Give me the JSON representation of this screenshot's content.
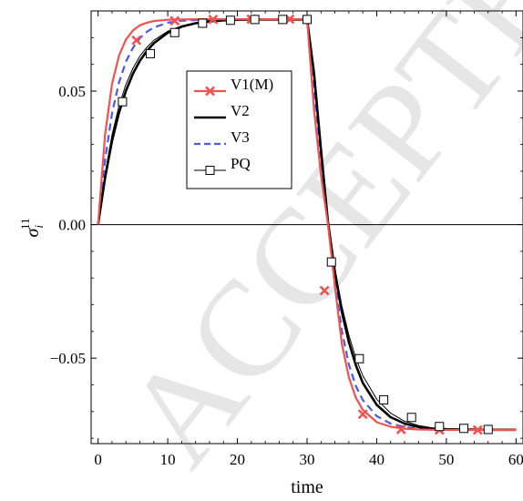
{
  "watermark": "ACCEPTED",
  "chart_data": {
    "type": "line",
    "xlabel": "time",
    "ylabel_base": "σ",
    "ylabel_sub": "i",
    "ylabel_sup": "11",
    "xlim": [
      -1,
      61
    ],
    "ylim": [
      -0.082,
      0.08
    ],
    "xticks": [
      0,
      10,
      20,
      30,
      40,
      50,
      60
    ],
    "xtick_labels": [
      "0",
      "10",
      "20",
      "30",
      "40",
      "50",
      "60"
    ],
    "yticks": [
      -0.05,
      0.0,
      0.05
    ],
    "ytick_labels": [
      "−0.05",
      "0.00",
      "0.05"
    ],
    "legend_position": "upper-center",
    "series": [
      {
        "name": "V1(M)",
        "color": "#f05252",
        "dash": "solid",
        "marker": "x-mark",
        "x": [
          0,
          1,
          2,
          3,
          4,
          5,
          6,
          7,
          8,
          10,
          12,
          14,
          16,
          18,
          20,
          22,
          24,
          26,
          28,
          30,
          31,
          32,
          33,
          34,
          35,
          36,
          37,
          38,
          40,
          42,
          44,
          46,
          48,
          50,
          55,
          60
        ],
        "y": [
          0.0,
          0.0337,
          0.0526,
          0.0633,
          0.0693,
          0.0727,
          0.0746,
          0.0756,
          0.0762,
          0.0767,
          0.0768,
          0.0769,
          0.0769,
          0.0769,
          0.0769,
          0.0769,
          0.0769,
          0.0769,
          0.0769,
          0.0769,
          0.0432,
          0.0184,
          0.0002,
          -0.0232,
          -0.0447,
          -0.0572,
          -0.0648,
          -0.0694,
          -0.074,
          -0.0757,
          -0.0764,
          -0.0767,
          -0.0768,
          -0.0769,
          -0.0769,
          -0.0769
        ],
        "marker_x": [
          5.5,
          11,
          16.5,
          22,
          27.5,
          32.5,
          38,
          43.5,
          49,
          54.5
        ],
        "marker_y": [
          0.069,
          0.0763,
          0.0768,
          0.0769,
          0.0769,
          -0.0247,
          -0.071,
          -0.0767,
          -0.0769,
          -0.0769
        ]
      },
      {
        "name": "V2",
        "color": "#000000",
        "dash": "solid",
        "marker": "none",
        "width": 2.6,
        "x": [
          0,
          1,
          2,
          3,
          4,
          5,
          6,
          7,
          8,
          10,
          12,
          14,
          16,
          18,
          20,
          22,
          24,
          26,
          28,
          30,
          31,
          32,
          33,
          34,
          35,
          36,
          37,
          38,
          40,
          42,
          44,
          46,
          48,
          50,
          55,
          60
        ],
        "y": [
          0.0,
          0.0175,
          0.0313,
          0.0419,
          0.0501,
          0.0565,
          0.0613,
          0.065,
          0.0679,
          0.0718,
          0.0741,
          0.0754,
          0.0761,
          0.0765,
          0.0767,
          0.0768,
          0.0768,
          0.0768,
          0.0768,
          0.0768,
          0.0568,
          0.028,
          0.0011,
          -0.0178,
          -0.0327,
          -0.044,
          -0.0526,
          -0.0593,
          -0.0675,
          -0.0721,
          -0.0745,
          -0.0758,
          -0.0764,
          -0.0766,
          -0.0768,
          -0.0768
        ]
      },
      {
        "name": "V3",
        "color": "#4a5ae8",
        "dash": "dashed",
        "marker": "none",
        "x": [
          0,
          1,
          2,
          3,
          4,
          5,
          6,
          7,
          8,
          10,
          12,
          14,
          16,
          18,
          20,
          22,
          24,
          26,
          28,
          30,
          31,
          32,
          33,
          34,
          35,
          36,
          37,
          38,
          40,
          42,
          44,
          46,
          48,
          50,
          55,
          60
        ],
        "y": [
          0.0,
          0.0242,
          0.0416,
          0.0532,
          0.061,
          0.0662,
          0.0698,
          0.0722,
          0.0738,
          0.0756,
          0.0763,
          0.0766,
          0.0768,
          0.0768,
          0.0768,
          0.0768,
          0.0768,
          0.0768,
          0.0768,
          0.0768,
          0.0508,
          0.025,
          0.0009,
          -0.0213,
          -0.0398,
          -0.0524,
          -0.0604,
          -0.0657,
          -0.0717,
          -0.0745,
          -0.0758,
          -0.0764,
          -0.0767,
          -0.0768,
          -0.0768,
          -0.0768
        ]
      },
      {
        "name": "PQ",
        "color": "#000000",
        "dash": "solid",
        "marker": "square",
        "width": 1.0,
        "x": [
          0,
          1,
          2,
          3,
          4,
          5,
          6,
          7,
          8,
          10,
          12,
          14,
          16,
          18,
          20,
          22,
          24,
          26,
          28,
          30,
          31,
          32,
          33,
          34,
          35,
          36,
          37,
          38,
          40,
          42,
          44,
          46,
          48,
          50,
          55,
          60
        ],
        "y": [
          0.0,
          0.019,
          0.0335,
          0.0445,
          0.0525,
          0.0585,
          0.0631,
          0.0664,
          0.069,
          0.0724,
          0.0744,
          0.0755,
          0.0762,
          0.0765,
          0.0767,
          0.0768,
          0.0768,
          0.0768,
          0.0768,
          0.0768,
          0.056,
          0.0275,
          0.001,
          -0.0165,
          -0.0305,
          -0.0414,
          -0.05,
          -0.0566,
          -0.0654,
          -0.0706,
          -0.0736,
          -0.0752,
          -0.0761,
          -0.0765,
          -0.0768,
          -0.0768
        ],
        "marker_x": [
          3.5,
          7.5,
          11,
          15,
          19,
          22.5,
          26.5,
          30,
          33.5,
          37.5,
          41,
          45,
          49,
          52.5,
          56
        ],
        "marker_y": [
          0.046,
          0.064,
          0.0719,
          0.0754,
          0.0765,
          0.0768,
          0.0768,
          0.0768,
          -0.014,
          -0.0502,
          -0.0656,
          -0.0722,
          -0.0756,
          -0.0763,
          -0.0767
        ]
      }
    ]
  }
}
